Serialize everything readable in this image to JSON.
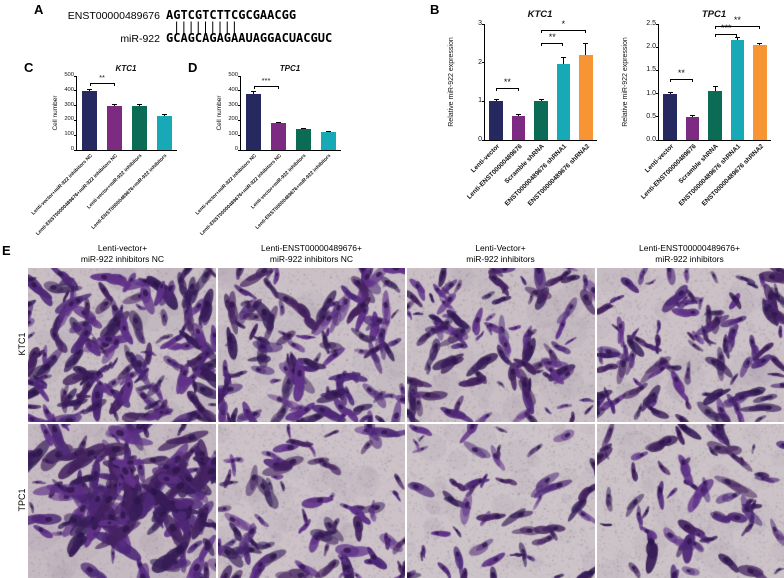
{
  "panel_a": {
    "label": "A",
    "top_name": "ENST00000489676",
    "top_seq": "AGTCGTCTTCGCGAACGG",
    "pairs": "|||||||||",
    "bottom_name": "miR-922",
    "bottom_seq": "GCAGCAGAGAAUAGGACUACGUC"
  },
  "panel_b": {
    "label": "B"
  },
  "panel_c": {
    "label": "C"
  },
  "panel_d": {
    "label": "D"
  },
  "panel_e": {
    "label": "E",
    "row_labels": [
      "KTC1",
      "TPC1"
    ],
    "cols": [
      {
        "line1": "Lenti-vector+",
        "line2": "miR-922 inhibitors NC"
      },
      {
        "line1": "Lenti-ENST00000489676+",
        "line2": "miR-922 inhibitors NC"
      },
      {
        "line1": "Lenti-Vector+",
        "line2": "miR-922 inhibitors"
      },
      {
        "line1": "Lenti-ENST00000489676+",
        "line2": "miR-922 inhibitors"
      }
    ],
    "micrographs": [
      {
        "name": "KTC1 Lenti-vector+miR-922 inhibitors NC",
        "count": 150,
        "size": 17,
        "bg": "#c8bec4",
        "seed": 11,
        "clustered": false
      },
      {
        "name": "KTC1 Lenti-ENST00000489676+miR-922 inhibitors NC",
        "count": 118,
        "size": 16,
        "bg": "#cac0c6",
        "seed": 22,
        "clustered": false
      },
      {
        "name": "KTC1 Lenti-Vector+miR-922 inhibitors",
        "count": 98,
        "size": 16,
        "bg": "#c9bfc5",
        "seed": 33,
        "clustered": false
      },
      {
        "name": "KTC1 Lenti-ENST00000489676+miR-922 inhibitors",
        "count": 104,
        "size": 15,
        "bg": "#cbc1c7",
        "seed": 44,
        "clustered": false
      },
      {
        "name": "TPC1 Lenti-vector+miR-922 inhibitors NC",
        "count": 165,
        "size": 20,
        "bg": "#c6bac2",
        "seed": 55,
        "clustered": true
      },
      {
        "name": "TPC1 Lenti-ENST00000489676+miR-922 inhibitors NC",
        "count": 78,
        "size": 17,
        "bg": "#ccc2c8",
        "seed": 66,
        "clustered": false
      },
      {
        "name": "TPC1 Lenti-Vector+miR-922 inhibitors",
        "count": 50,
        "size": 15,
        "bg": "#cdc4c9",
        "seed": 77,
        "clustered": false
      },
      {
        "name": "TPC1 Lenti-ENST00000489676+miR-922 inhibitors",
        "count": 62,
        "size": 16,
        "bg": "#ccc3c8",
        "seed": 88,
        "clustered": false
      }
    ]
  },
  "colors": {
    "navy": "#26295f",
    "purple": "#7c2a82",
    "green": "#0c6b55",
    "teal": "#17a9b5",
    "orange": "#f79433",
    "cell_dark": [
      "#371c58",
      "#4d2776",
      "#5f3187",
      "#44225f"
    ]
  },
  "chart_data": [
    {
      "id": "B-KTC1",
      "type": "bar",
      "title": "KTC1",
      "ylabel": "Relative miR-922 expression",
      "ylim": [
        0,
        3
      ],
      "yticks": [
        0,
        1,
        2,
        3
      ],
      "ytick_labels": [
        "0",
        "1",
        "2",
        "3"
      ],
      "categories": [
        "Lenti-vector",
        "Lenti-ENST00000489676",
        "Scramble shRNA",
        "ENST00000489676 shRNA1",
        "ENST00000489676 shRNA2"
      ],
      "values": [
        1.0,
        0.62,
        1.0,
        1.97,
        2.2
      ],
      "errors": [
        0.05,
        0.04,
        0.05,
        0.18,
        0.3
      ],
      "bar_colors": [
        "navy",
        "purple",
        "green",
        "teal",
        "orange"
      ],
      "significance": [
        {
          "from": 0,
          "to": 1,
          "label": "**",
          "y": 1.35
        },
        {
          "from": 2,
          "to": 3,
          "label": "**",
          "y": 2.5
        },
        {
          "from": 2,
          "to": 4,
          "label": "*",
          "y": 2.85
        }
      ]
    },
    {
      "id": "B-TPC1",
      "type": "bar",
      "title": "TPC1",
      "ylabel": "Relative miR-922 expression",
      "ylim": [
        0,
        2.5
      ],
      "yticks": [
        0,
        0.5,
        1,
        1.5,
        2,
        2.5
      ],
      "ytick_labels": [
        "0.0",
        "0.5",
        "1.0",
        "1.5",
        "2.0",
        "2.5"
      ],
      "categories": [
        "Lenti-vector",
        "Lenti-ENST00000489676",
        "Scramble shRNA",
        "ENST00000489676 shRNA1",
        "ENST00000489676 shRNA2"
      ],
      "values": [
        1.0,
        0.5,
        1.05,
        2.15,
        2.05
      ],
      "errors": [
        0.04,
        0.03,
        0.12,
        0.06,
        0.04
      ],
      "bar_colors": [
        "navy",
        "purple",
        "green",
        "teal",
        "orange"
      ],
      "significance": [
        {
          "from": 0,
          "to": 1,
          "label": "**",
          "y": 1.32
        },
        {
          "from": 2,
          "to": 3,
          "label": "***",
          "y": 2.28
        },
        {
          "from": 2,
          "to": 4,
          "label": "**",
          "y": 2.45
        }
      ]
    },
    {
      "id": "C-KTC1",
      "type": "bar",
      "title": "KTC1",
      "ylabel": "Cell number",
      "ylim": [
        0,
        500
      ],
      "yticks": [
        0,
        100,
        200,
        300,
        400,
        500
      ],
      "ytick_labels": [
        "0",
        "100",
        "200",
        "300",
        "400",
        "500"
      ],
      "categories": [
        "Lenti-vector+miR-922 inhibitors NC",
        "Lenti-ENST00000489676+miR-922 inhibitors NC",
        "Lenti-vector+miR-922 inhibitors",
        "Lenti-ENST00000489676+miR-922 inhibitors"
      ],
      "values": [
        400,
        300,
        297,
        230
      ],
      "errors": [
        15,
        12,
        13,
        10
      ],
      "bar_colors": [
        "navy",
        "purple",
        "green",
        "teal"
      ],
      "significance": [
        {
          "from": 0,
          "to": 1,
          "label": "**",
          "y": 455
        }
      ]
    },
    {
      "id": "D-TPC1",
      "type": "bar",
      "title": "TPC1",
      "ylabel": "Cell number",
      "ylim": [
        0,
        500
      ],
      "yticks": [
        0,
        100,
        200,
        300,
        400,
        500
      ],
      "ytick_labels": [
        "0",
        "100",
        "200",
        "300",
        "400",
        "500"
      ],
      "categories": [
        "Lenti-vector+miR-922 inhibitors NC",
        "Lenti-ENST00000489676+miR-922 inhibitors NC",
        "Lenti-vector+miR-922 inhibitors",
        "Lenti-ENST00000489676+miR-922 inhibitors"
      ],
      "values": [
        378,
        182,
        140,
        122
      ],
      "errors": [
        20,
        10,
        10,
        9
      ],
      "bar_colors": [
        "navy",
        "purple",
        "green",
        "teal"
      ],
      "significance": [
        {
          "from": 0,
          "to": 1,
          "label": "***",
          "y": 430
        }
      ]
    }
  ]
}
